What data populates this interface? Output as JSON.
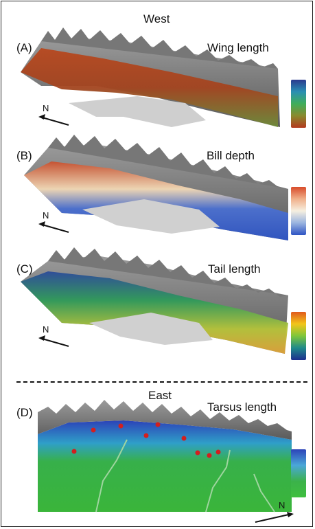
{
  "regions": {
    "west": "West",
    "east": "East"
  },
  "panels": [
    {
      "letter": "(A)",
      "trait": "Wing length",
      "colorbar": [
        "#2b3a8f",
        "#2a8fb3",
        "#3fae5a",
        "#8a8a2e",
        "#b33a1e"
      ]
    },
    {
      "letter": "(B)",
      "trait": "Bill depth",
      "colorbar": [
        "#d84b2a",
        "#f0b08a",
        "#f6efe0",
        "#9ab4e0",
        "#2f55c4"
      ]
    },
    {
      "letter": "(C)",
      "trait": "Tail length",
      "colorbar": [
        "#e05a1c",
        "#f3c51a",
        "#7ec63a",
        "#1f8a8a",
        "#1c2f8e"
      ]
    },
    {
      "letter": "(D)",
      "trait": "Tarsus length",
      "colorbar": [
        "#2c43b8",
        "#4aa7d8",
        "#3bb24a",
        "#3fbf3f"
      ]
    }
  ],
  "north_label": "N"
}
